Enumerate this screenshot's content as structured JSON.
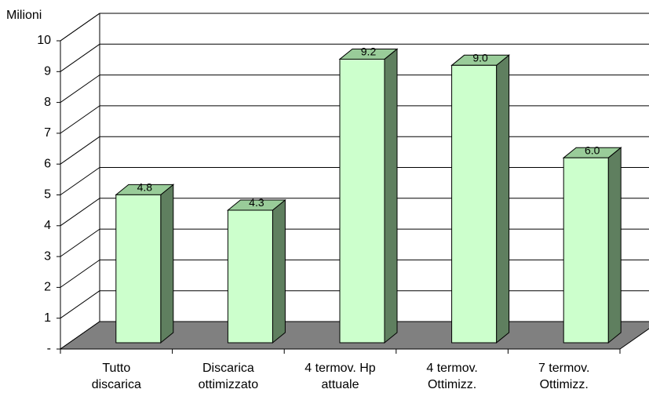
{
  "chart_data": {
    "type": "bar",
    "y_label": "Milioni",
    "categories": [
      "Tutto\ndiscarica",
      "Discarica\nottimizzato",
      "4 termov. Hp\nattuale",
      "4 termov.\nOttimizz.",
      "7 termov.\nOttimizz."
    ],
    "values": [
      4.8,
      4.3,
      9.2,
      9.0,
      6.0
    ],
    "value_labels": [
      "4.8",
      "4.3",
      "9.2",
      "9.0",
      "6.0"
    ],
    "color": "#ccffcc",
    "ylim": [
      0,
      10
    ],
    "yticks": [
      {
        "value": 0,
        "label": "-"
      },
      1,
      2,
      3,
      4,
      5,
      6,
      7,
      8,
      9,
      10
    ],
    "grid": true
  }
}
